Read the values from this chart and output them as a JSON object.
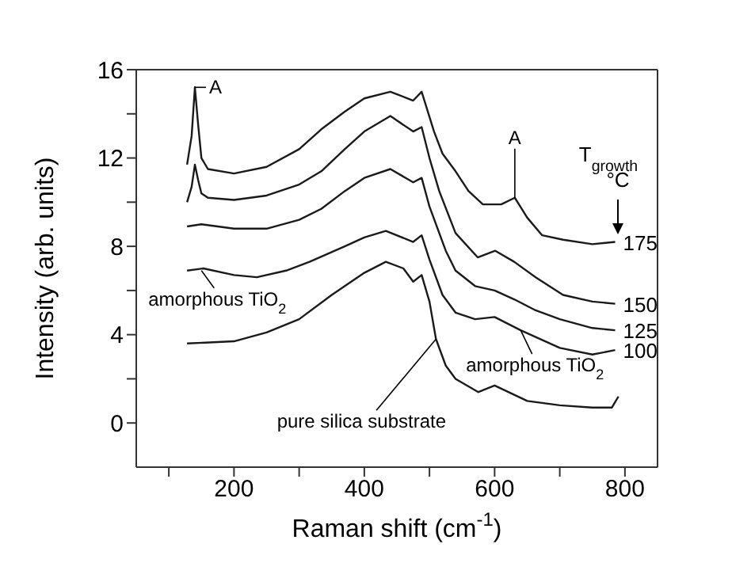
{
  "chart_data": {
    "type": "line",
    "xlabel": "Raman shift (cm$^{-1}$)",
    "ylabel": "Intensity (arb. units)",
    "legend_title": "T$_{growth}$ °C",
    "xlim": [
      50,
      850
    ],
    "xticks": [
      {
        "value": 100,
        "label": null
      },
      200,
      {
        "value": 300,
        "label": null
      },
      400,
      {
        "value": 500,
        "label": null
      },
      600,
      {
        "value": 700,
        "label": null
      },
      800
    ],
    "ylim": [
      -2,
      16
    ],
    "yticks": [
      0,
      {
        "value": 2,
        "label": null
      },
      4,
      {
        "value": 6,
        "label": null
      },
      8,
      {
        "value": 10,
        "label": null
      },
      12,
      {
        "value": 14,
        "label": null
      },
      16
    ],
    "marker": "none",
    "line_style": "solid",
    "series": [
      {
        "name": "175",
        "color": "#1a1a1a",
        "x": [
          128,
          135,
          140,
          145,
          150,
          160,
          200,
          250,
          300,
          334,
          370,
          400,
          440,
          475,
          488,
          507,
          520,
          540,
          560,
          582,
          610,
          631,
          650,
          673,
          705,
          750,
          785
        ],
        "values": [
          11.7,
          13,
          15.2,
          13.5,
          12,
          11.5,
          11.3,
          11.6,
          12.4,
          13.3,
          14.1,
          14.7,
          15.0,
          14.6,
          15.0,
          13.2,
          12.2,
          11.4,
          10.5,
          9.9,
          9.9,
          10.2,
          9.3,
          8.5,
          8.3,
          8.1,
          8.2
        ]
      },
      {
        "name": "150",
        "color": "#1a1a1a",
        "x": [
          128,
          135,
          140,
          145,
          150,
          160,
          200,
          250,
          300,
          334,
          370,
          400,
          440,
          475,
          488,
          500,
          515,
          540,
          574,
          601,
          630,
          663,
          705,
          750,
          785
        ],
        "values": [
          10.0,
          10.7,
          11.7,
          11,
          10.4,
          10.2,
          10.1,
          10.3,
          10.8,
          11.4,
          12.4,
          13.2,
          13.9,
          13.2,
          13.4,
          12.0,
          10.5,
          8.6,
          7.5,
          7.8,
          7.3,
          6.6,
          5.8,
          5.5,
          5.4
        ]
      },
      {
        "name": "125",
        "color": "#1a1a1a",
        "x": [
          128,
          150,
          200,
          250,
          300,
          334,
          370,
          400,
          440,
          475,
          488,
          500,
          525,
          540,
          570,
          600,
          630,
          663,
          700,
          750,
          785
        ],
        "values": [
          8.9,
          9.0,
          8.8,
          8.8,
          9.2,
          9.7,
          10.5,
          11.1,
          11.5,
          10.9,
          11.1,
          9.8,
          7.8,
          6.9,
          6.2,
          6.0,
          5.6,
          5.1,
          4.7,
          4.3,
          4.2
        ]
      },
      {
        "name": "100",
        "color": "#1a1a1a",
        "x": [
          128,
          153,
          200,
          235,
          280,
          316,
          370,
          400,
          433,
          475,
          488,
          500,
          520,
          540,
          570,
          600,
          640,
          700,
          750,
          785
        ],
        "values": [
          6.9,
          7.0,
          6.7,
          6.6,
          6.9,
          7.3,
          8.0,
          8.4,
          8.7,
          8.2,
          8.5,
          7.4,
          5.8,
          5.0,
          4.7,
          4.8,
          4.2,
          3.4,
          3.1,
          3.3
        ]
      },
      {
        "color": "#1a1a1a",
        "x": [
          128,
          200,
          250,
          300,
          350,
          400,
          433,
          460,
          475,
          488,
          500,
          510,
          525,
          540,
          575,
          600,
          650,
          700,
          750,
          780,
          790
        ],
        "values": [
          3.6,
          3.7,
          4.1,
          4.7,
          5.8,
          6.8,
          7.3,
          7.0,
          6.4,
          6.7,
          5.5,
          3.8,
          2.6,
          2.0,
          1.4,
          1.7,
          1.0,
          0.8,
          0.7,
          0.7,
          1.2
        ]
      }
    ],
    "annotations": [
      {
        "text": "A",
        "x": 140,
        "y": 15.2
      },
      {
        "text": "A",
        "x": 631,
        "y": 10.2
      },
      {
        "text": "amorphous TiO$_{2}$",
        "x": 150,
        "y": 6.9
      },
      {
        "text": "amorphous TiO$_{2}$",
        "x": 640,
        "y": 4.2
      },
      {
        "text": "pure silica substrate",
        "x": 510,
        "y": 3.8
      }
    ]
  }
}
